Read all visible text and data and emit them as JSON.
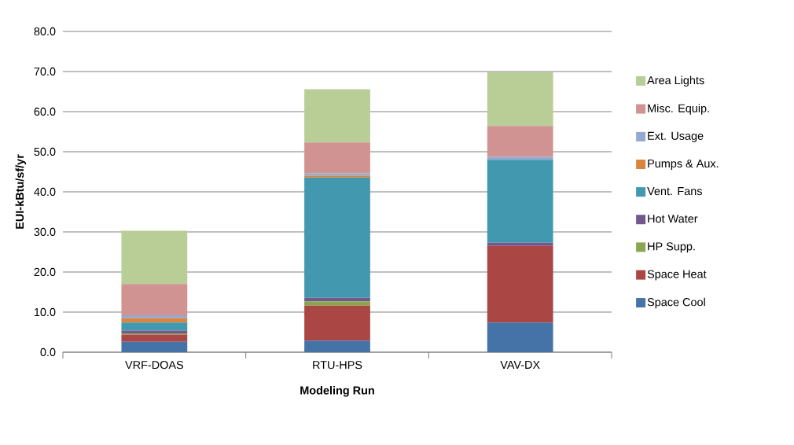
{
  "chart_data": {
    "type": "bar",
    "stacked": true,
    "xlabel": "Modeling Run",
    "ylabel": "EUI-kBtu/sf/yr",
    "categories": [
      "VRF-DOAS",
      "RTU-HPS",
      "VAV-DX"
    ],
    "series": [
      {
        "name": "Space Cool",
        "color": "#4572a7",
        "values": [
          2.6,
          2.9,
          7.4
        ]
      },
      {
        "name": "Space Heat",
        "color": "#aa4643",
        "values": [
          1.8,
          8.7,
          19.1
        ]
      },
      {
        "name": "HP Supp.",
        "color": "#89a54e",
        "values": [
          0.3,
          1.1,
          0
        ]
      },
      {
        "name": "Hot Water",
        "color": "#71588f",
        "values": [
          0.7,
          0.9,
          0.8
        ]
      },
      {
        "name": "Vent. Fans",
        "color": "#4198af",
        "values": [
          2.0,
          30.0,
          20.7
        ]
      },
      {
        "name": "Pumps & Aux.",
        "color": "#db843d",
        "values": [
          1.1,
          0.4,
          null
        ]
      },
      {
        "name": "Ext. Usage",
        "color": "#93a9cf",
        "values": [
          0.7,
          0.6,
          0.7
        ]
      },
      {
        "name": "Misc. Equip.",
        "color": "#d19392",
        "values": [
          7.8,
          7.7,
          7.7
        ]
      },
      {
        "name": "Area Lights",
        "color": "#b9cd96",
        "values": [
          13.3,
          13.3,
          13.4
        ]
      }
    ],
    "ylim": [
      0,
      80
    ],
    "yticks": [
      {
        "value": 0,
        "label": "0.0"
      },
      {
        "value": 10,
        "label": "10.0"
      },
      {
        "value": 20,
        "label": "20.0"
      },
      {
        "value": 30,
        "label": "30.0"
      },
      {
        "value": 40,
        "label": "40.0"
      },
      {
        "value": 50,
        "label": "50.0"
      },
      {
        "value": 60,
        "label": "60.0"
      },
      {
        "value": 70,
        "label": "70.0"
      },
      {
        "value": 80,
        "label": "80.0"
      }
    ],
    "grid": "y",
    "legend": "right"
  }
}
